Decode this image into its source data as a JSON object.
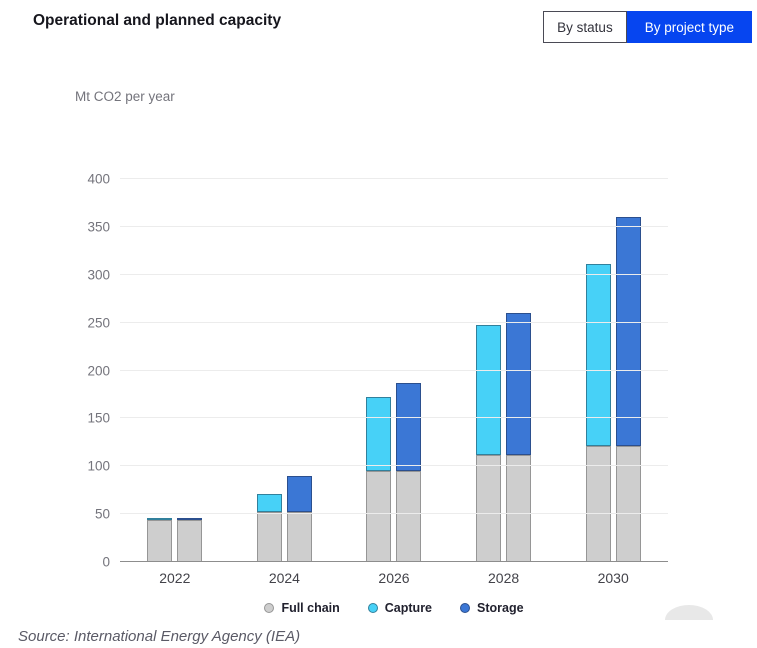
{
  "header": {
    "title": "Operational and planned capacity"
  },
  "toggle": {
    "items": [
      {
        "label": "By status",
        "active": false
      },
      {
        "label": "By project type",
        "active": true
      }
    ],
    "active_bg": "#0645f0",
    "active_text": "#ffffff"
  },
  "chart_data": {
    "type": "bar",
    "stacked": true,
    "title": "Operational and planned capacity",
    "ylabel": "Mt CO2 per year",
    "xlabel": "",
    "categories": [
      "2022",
      "2024",
      "2026",
      "2028",
      "2030"
    ],
    "series": [
      {
        "name": "Full chain",
        "color": "#cecece",
        "border": "#969696",
        "values": [
          44,
          52,
          95,
          112,
          121
        ]
      },
      {
        "name": "Capture",
        "color": "#47d1f7",
        "border": "#31809c",
        "values": [
          1.5,
          19,
          77,
          136,
          190
        ]
      },
      {
        "name": "Storage",
        "color": "#3b77d5",
        "border": "#2b4f8e",
        "values": [
          1.5,
          38,
          92,
          148,
          239
        ]
      }
    ],
    "bars_per_category": [
      [
        "Full chain",
        "Capture"
      ],
      [
        "Full chain",
        "Storage"
      ]
    ],
    "bar_totals_note": "left bar per year = Full chain + Capture; right bar = Full chain + Storage",
    "ylim": [
      0,
      400
    ],
    "yticks": [
      0,
      50,
      100,
      150,
      200,
      250,
      300,
      350,
      400
    ],
    "grid": true,
    "legend_position": "bottom"
  },
  "source": {
    "text": "Source: International Energy Agency (IEA)"
  }
}
